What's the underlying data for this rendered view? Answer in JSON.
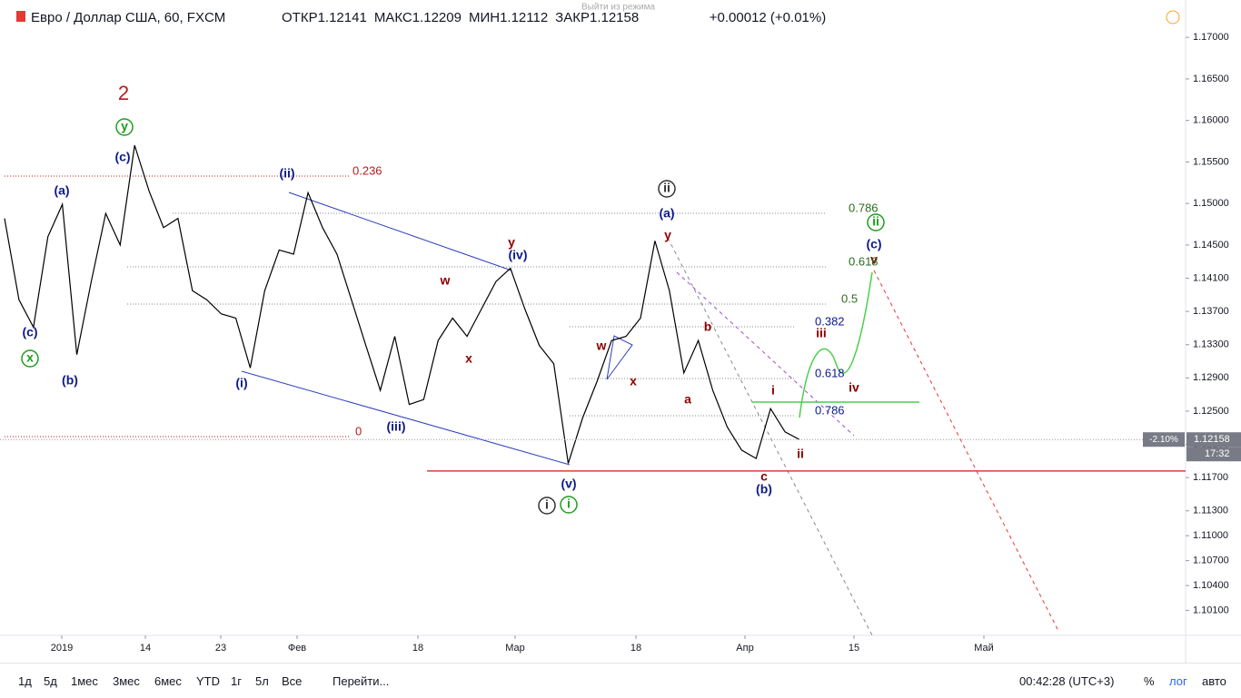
{
  "chart_data": {
    "type": "line",
    "title": "Евро / Доллар США, 60, FXCM",
    "ohlc": [
      {
        "label": "ОТКР",
        "value": "1.12141"
      },
      {
        "label": "МАКС",
        "value": "1.12209"
      },
      {
        "label": "МИН",
        "value": "1.12112"
      },
      {
        "label": "ЗАКР",
        "value": "1.12158"
      }
    ],
    "change": "+0.00012 (+0.01%)",
    "tooltip": "Выйти из режима",
    "color": "#000000",
    "values": [
      1.1482,
      1.1384,
      1.1351,
      1.146,
      1.1499,
      1.1318,
      1.1406,
      1.1488,
      1.145,
      1.157,
      1.1515,
      1.1471,
      1.1482,
      1.1395,
      1.1384,
      1.1367,
      1.1362,
      1.1302,
      1.1395,
      1.1444,
      1.1439,
      1.1513,
      1.1471,
      1.1439,
      1.1384,
      1.1329,
      1.1275,
      1.134,
      1.1258,
      1.1264,
      1.1335,
      1.1362,
      1.134,
      1.1373,
      1.1406,
      1.1422,
      1.1373,
      1.1329,
      1.1307,
      1.1187,
      1.1242,
      1.1286,
      1.1335,
      1.134,
      1.1362,
      1.1455,
      1.1395,
      1.1296,
      1.1335,
      1.1275,
      1.1231,
      1.1203,
      1.1193,
      1.1253,
      1.1225,
      1.12158
    ],
    "ylim": [
      1.098,
      1.1745
    ],
    "yticks": [
      {
        "value": 1.17,
        "label": "1.17000"
      },
      {
        "value": 1.165,
        "label": "1.16500"
      },
      {
        "value": 1.16,
        "label": "1.16000"
      },
      {
        "value": 1.155,
        "label": "1.15500"
      },
      {
        "value": 1.15,
        "label": "1.15000"
      },
      {
        "value": 1.145,
        "label": "1.14500"
      },
      {
        "value": 1.141,
        "label": "1.14100"
      },
      {
        "value": 1.137,
        "label": "1.13700"
      },
      {
        "value": 1.133,
        "label": "1.13300"
      },
      {
        "value": 1.129,
        "label": "1.12900"
      },
      {
        "value": 1.125,
        "label": "1.12500"
      },
      {
        "value": 1.121,
        "label": "1.12100"
      },
      {
        "value": 1.117,
        "label": "1.11700"
      },
      {
        "value": 1.113,
        "label": "1.11300"
      },
      {
        "value": 1.11,
        "label": "1.11000"
      },
      {
        "value": 1.107,
        "label": "1.10700"
      },
      {
        "value": 1.104,
        "label": "1.10400"
      },
      {
        "value": 1.101,
        "label": "1.10100"
      }
    ],
    "xticks": [
      "2019",
      "14",
      "23",
      "Фев",
      "18",
      "Мар",
      "18",
      "Апр",
      "15",
      "Май"
    ],
    "last_price": {
      "change": "-2.10%",
      "price": "1.12158",
      "countdown": "17:32"
    },
    "support_level": 1.1178,
    "annotations": [
      {
        "text": "2",
        "color": "#b71c1c"
      },
      {
        "text": "y",
        "color": "#1e9e1e",
        "circled": true
      },
      {
        "text": "(c)",
        "color": "#0d1a8a"
      },
      {
        "text": "(a)",
        "color": "#0d1a8a"
      },
      {
        "text": "(c)",
        "color": "#0d1a8a"
      },
      {
        "text": "x",
        "color": "#1e9e1e",
        "circled": true
      },
      {
        "text": "(b)",
        "color": "#0d1a8a"
      },
      {
        "text": "(ii)",
        "color": "#0d1a8a"
      },
      {
        "text": "(i)",
        "color": "#0d1a8a"
      },
      {
        "text": "(iii)",
        "color": "#0d1a8a"
      },
      {
        "text": "w",
        "color": "#8b0000"
      },
      {
        "text": "x",
        "color": "#8b0000"
      },
      {
        "text": "y",
        "color": "#8b0000"
      },
      {
        "text": "(iv)",
        "color": "#0d1a8a"
      },
      {
        "text": "(v)",
        "color": "#0d1a8a"
      },
      {
        "text": "i",
        "color": "#333333",
        "circled": true
      },
      {
        "text": "i",
        "color": "#1e9e1e",
        "circled": true
      },
      {
        "text": "w",
        "color": "#8b0000"
      },
      {
        "text": "x",
        "color": "#8b0000"
      },
      {
        "text": "ii",
        "color": "#333333",
        "circled": true
      },
      {
        "text": "(a)",
        "color": "#0d1a8a"
      },
      {
        "text": "y",
        "color": "#8b0000"
      },
      {
        "text": "b",
        "color": "#8b0000"
      },
      {
        "text": "a",
        "color": "#8b0000"
      },
      {
        "text": "i",
        "color": "#8b0000"
      },
      {
        "text": "ii",
        "color": "#8b0000"
      },
      {
        "text": "c",
        "color": "#8b0000"
      },
      {
        "text": "(b)",
        "color": "#0d1a8a"
      },
      {
        "text": "iii",
        "color": "#8b0000"
      },
      {
        "text": "iv",
        "color": "#8b0000"
      },
      {
        "text": "ii",
        "color": "#1e9e1e",
        "circled": true
      },
      {
        "text": "(c)",
        "color": "#0d1a8a"
      },
      {
        "text": "v",
        "color": "#8b0000"
      },
      {
        "text": "0.236",
        "color": "#b71c1c"
      },
      {
        "text": "0",
        "color": "#b71c1c"
      },
      {
        "text": "0.786",
        "color": "#2e6b1e"
      },
      {
        "text": "0.618",
        "color": "#2e6b1e"
      },
      {
        "text": "0.5",
        "color": "#2e6b1e"
      },
      {
        "text": "0.382",
        "color": "#0d1a8a"
      },
      {
        "text": "0.618",
        "color": "#0d1a8a"
      },
      {
        "text": "0.786",
        "color": "#0d1a8a"
      }
    ]
  },
  "toolbar": {
    "ranges": [
      "1д",
      "5д",
      "1мес",
      "3мес",
      "6мес",
      "YTD",
      "1г",
      "5л",
      "Все"
    ],
    "goto": "Перейти...",
    "clock": "00:42:28 (UTC+3)",
    "options": [
      "%",
      "лог",
      "авто"
    ]
  }
}
